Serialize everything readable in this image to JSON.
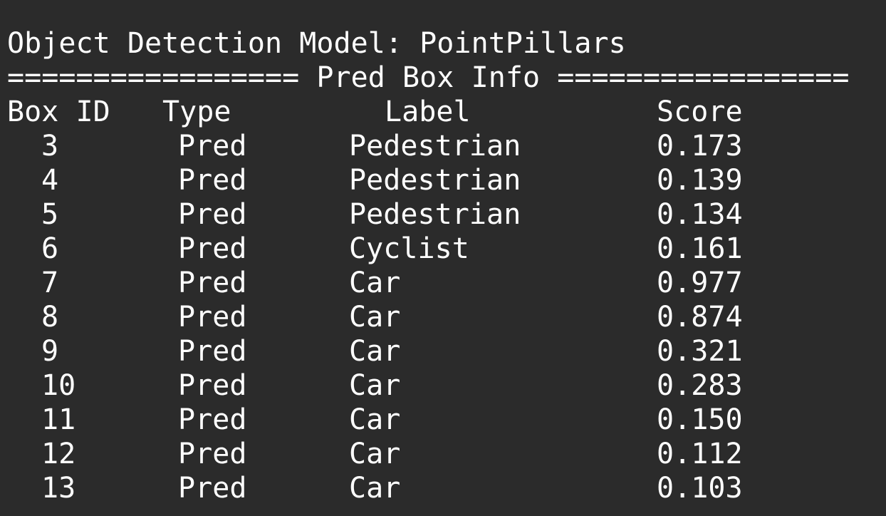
{
  "terminal": {
    "title_line": "Object Detection Model: PointPillars",
    "separator_line": "================= Pred Box Info =================",
    "headers": {
      "box_id": "Box ID",
      "type": "Type",
      "label": "Label",
      "score": "Score"
    },
    "rows": [
      {
        "box_id": "3",
        "type": "Pred",
        "label": "Pedestrian",
        "score": "0.173"
      },
      {
        "box_id": "4",
        "type": "Pred",
        "label": "Pedestrian",
        "score": "0.139"
      },
      {
        "box_id": "5",
        "type": "Pred",
        "label": "Pedestrian",
        "score": "0.134"
      },
      {
        "box_id": "6",
        "type": "Pred",
        "label": "Cyclist",
        "score": "0.161"
      },
      {
        "box_id": "7",
        "type": "Pred",
        "label": "Car",
        "score": "0.977"
      },
      {
        "box_id": "8",
        "type": "Pred",
        "label": "Car",
        "score": "0.874"
      },
      {
        "box_id": "9",
        "type": "Pred",
        "label": "Car",
        "score": "0.321"
      },
      {
        "box_id": "10",
        "type": "Pred",
        "label": "Car",
        "score": "0.283"
      },
      {
        "box_id": "11",
        "type": "Pred",
        "label": "Car",
        "score": "0.150"
      },
      {
        "box_id": "12",
        "type": "Pred",
        "label": "Car",
        "score": "0.112"
      },
      {
        "box_id": "13",
        "type": "Pred",
        "label": "Car",
        "score": "0.103"
      }
    ]
  },
  "colors": {
    "background": "#2b2b2b",
    "text": "#ffffff"
  }
}
